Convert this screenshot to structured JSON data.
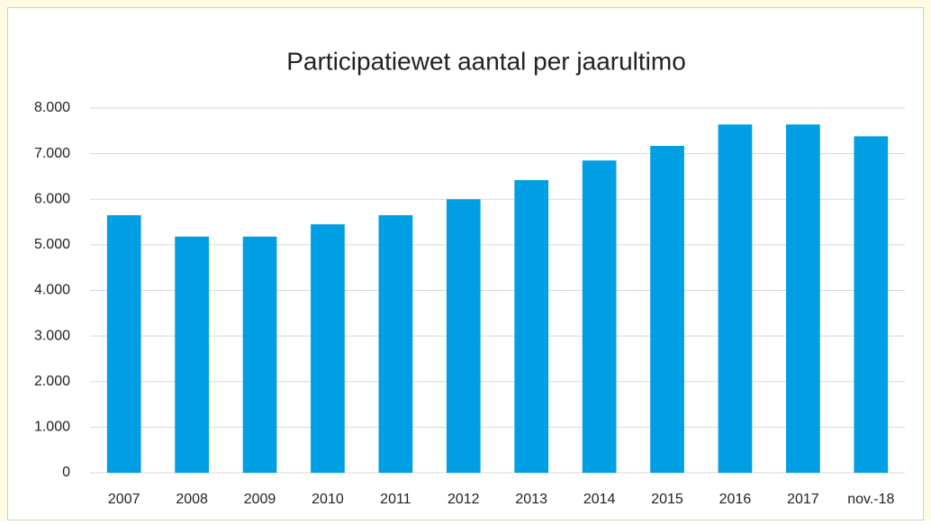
{
  "chart_data": {
    "type": "bar",
    "title": "Participatiewet aantal per jaarultimo",
    "categories": [
      "2007",
      "2008",
      "2009",
      "2010",
      "2011",
      "2012",
      "2013",
      "2014",
      "2015",
      "2016",
      "2017",
      "nov.-18"
    ],
    "values": [
      5650,
      5180,
      5180,
      5450,
      5650,
      6000,
      6420,
      6850,
      7170,
      7640,
      7640,
      7380
    ],
    "color": "#009fe3",
    "ylim": [
      0,
      8000
    ],
    "yticks": [
      0,
      {
        "value": 1000,
        "label": "1.000"
      },
      {
        "value": 2000,
        "label": "2.000"
      },
      {
        "value": 3000,
        "label": "3.000"
      },
      {
        "value": 4000,
        "label": "4.000"
      },
      {
        "value": 5000,
        "label": "5.000"
      },
      {
        "value": 6000,
        "label": "6.000"
      },
      {
        "value": 7000,
        "label": "7.000"
      },
      {
        "value": 8000,
        "label": "8.000"
      }
    ],
    "grid": true
  }
}
